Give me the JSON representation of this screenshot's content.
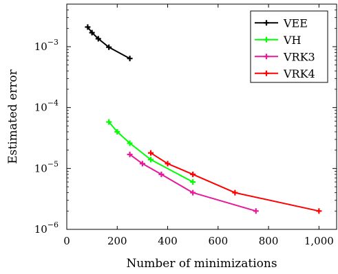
{
  "chart_data": {
    "type": "line",
    "title": "",
    "xlabel": "Number of minimizations",
    "ylabel": "Estimated error",
    "xscale": "linear",
    "yscale": "log",
    "xlim": [
      0,
      1070
    ],
    "ylim": [
      1e-06,
      0.005
    ],
    "xticks": [
      0,
      200,
      400,
      600,
      800,
      1000
    ],
    "xtick_labels": [
      "0",
      "200",
      "400",
      "600",
      "800",
      "1,000"
    ],
    "yticks": [
      1e-06,
      1e-05,
      0.0001,
      0.001
    ],
    "ytick_labels": [
      {
        "base": "10",
        "exp": "−6"
      },
      {
        "base": "10",
        "exp": "−5"
      },
      {
        "base": "10",
        "exp": "−4"
      },
      {
        "base": "10",
        "exp": "−3"
      }
    ],
    "grid": false,
    "legend": "top-right",
    "marker": "plus",
    "series": [
      {
        "name": "VEE",
        "color": "#000000",
        "x": [
          83,
          100,
          125,
          167,
          250
        ],
        "y": [
          0.0021,
          0.0017,
          0.00135,
          0.00098,
          0.00064
        ]
      },
      {
        "name": "VH",
        "color": "#00ff00",
        "x": [
          167,
          200,
          250,
          333,
          500
        ],
        "y": [
          5.8e-05,
          4e-05,
          2.6e-05,
          1.4e-05,
          6e-06
        ]
      },
      {
        "name": "VRK3",
        "color": "#e6199a",
        "x": [
          250,
          300,
          375,
          500,
          750
        ],
        "y": [
          1.7e-05,
          1.2e-05,
          8e-06,
          4e-06,
          2e-06
        ]
      },
      {
        "name": "VRK4",
        "color": "#ff0000",
        "x": [
          333,
          400,
          500,
          667,
          1000
        ],
        "y": [
          1.8e-05,
          1.2e-05,
          8e-06,
          4e-06,
          2e-06
        ]
      }
    ]
  }
}
